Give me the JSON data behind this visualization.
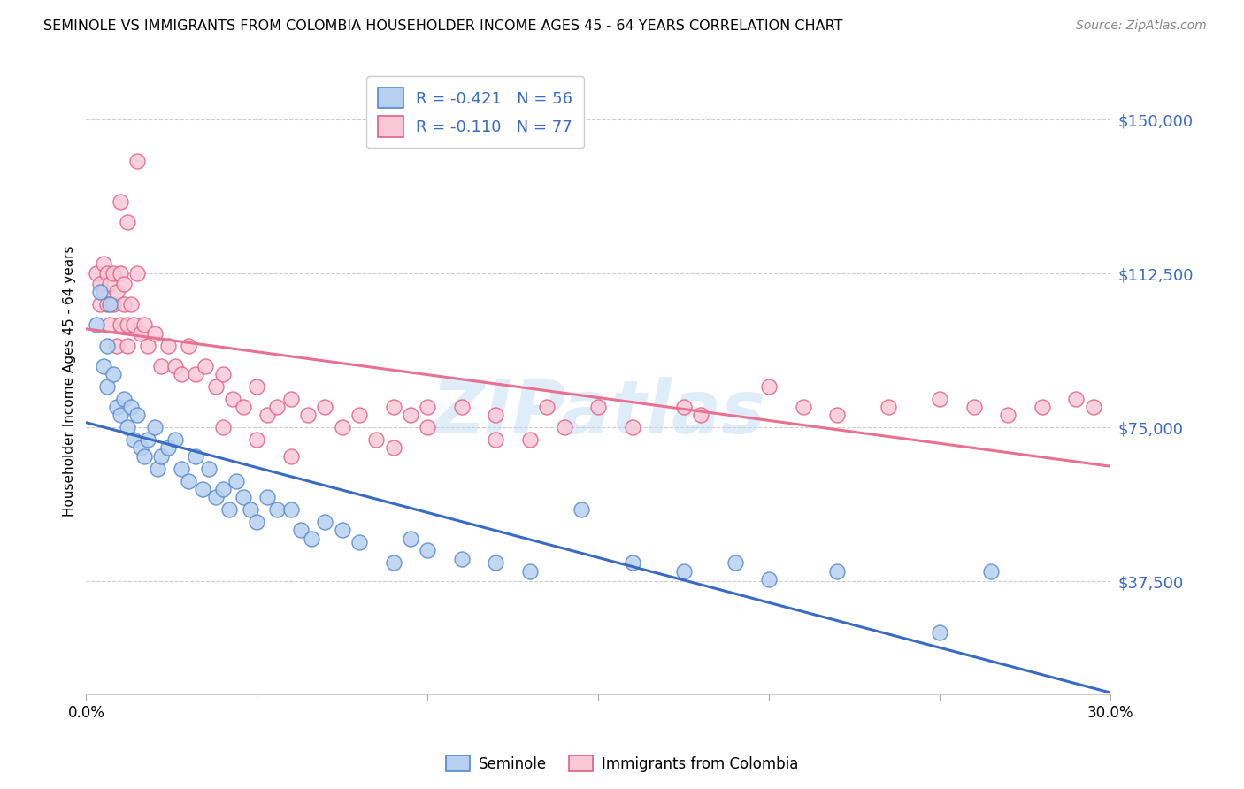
{
  "title": "SEMINOLE VS IMMIGRANTS FROM COLOMBIA HOUSEHOLDER INCOME AGES 45 - 64 YEARS CORRELATION CHART",
  "source": "Source: ZipAtlas.com",
  "ylabel": "Householder Income Ages 45 - 64 years",
  "ytick_labels": [
    "$37,500",
    "$75,000",
    "$112,500",
    "$150,000"
  ],
  "ytick_values": [
    37500,
    75000,
    112500,
    150000
  ],
  "ymin": 10000,
  "ymax": 162500,
  "xmin": 0.0,
  "xmax": 0.3,
  "xticks": [
    0.0,
    0.05,
    0.1,
    0.15,
    0.2,
    0.25,
    0.3
  ],
  "xtick_labels": [
    "0.0%",
    "",
    "",
    "",
    "",
    "",
    "30.0%"
  ],
  "legend_label1": "R = -0.421   N = 56",
  "legend_label2": "R = -0.110   N = 77",
  "legend_color1": "#b8d0f0",
  "legend_color2": "#f8c8d8",
  "line_color1": "#3A6BC4",
  "line_color2": "#E87090",
  "scatter_color1": "#b8d0f0",
  "scatter_color2": "#f8c8d8",
  "scatter_edge1": "#5588CC",
  "scatter_edge2": "#E06080",
  "watermark": "ZIPatlas",
  "bottom_label1": "Seminole",
  "bottom_label2": "Immigrants from Colombia",
  "seminole_x": [
    0.003,
    0.004,
    0.005,
    0.006,
    0.006,
    0.007,
    0.008,
    0.009,
    0.01,
    0.011,
    0.012,
    0.013,
    0.014,
    0.015,
    0.016,
    0.017,
    0.018,
    0.02,
    0.021,
    0.022,
    0.024,
    0.026,
    0.028,
    0.03,
    0.032,
    0.034,
    0.036,
    0.038,
    0.04,
    0.042,
    0.044,
    0.046,
    0.048,
    0.05,
    0.053,
    0.056,
    0.06,
    0.063,
    0.066,
    0.07,
    0.075,
    0.08,
    0.09,
    0.095,
    0.1,
    0.11,
    0.12,
    0.13,
    0.145,
    0.16,
    0.175,
    0.19,
    0.2,
    0.22,
    0.25,
    0.265
  ],
  "seminole_y": [
    100000,
    108000,
    90000,
    95000,
    85000,
    105000,
    88000,
    80000,
    78000,
    82000,
    75000,
    80000,
    72000,
    78000,
    70000,
    68000,
    72000,
    75000,
    65000,
    68000,
    70000,
    72000,
    65000,
    62000,
    68000,
    60000,
    65000,
    58000,
    60000,
    55000,
    62000,
    58000,
    55000,
    52000,
    58000,
    55000,
    55000,
    50000,
    48000,
    52000,
    50000,
    47000,
    42000,
    48000,
    45000,
    43000,
    42000,
    40000,
    55000,
    42000,
    40000,
    42000,
    38000,
    40000,
    25000,
    40000
  ],
  "colombia_x": [
    0.003,
    0.004,
    0.004,
    0.005,
    0.005,
    0.006,
    0.006,
    0.007,
    0.007,
    0.008,
    0.008,
    0.009,
    0.009,
    0.01,
    0.01,
    0.011,
    0.011,
    0.012,
    0.012,
    0.013,
    0.014,
    0.015,
    0.016,
    0.017,
    0.018,
    0.02,
    0.022,
    0.024,
    0.026,
    0.028,
    0.03,
    0.032,
    0.035,
    0.038,
    0.04,
    0.043,
    0.046,
    0.05,
    0.053,
    0.056,
    0.06,
    0.065,
    0.07,
    0.075,
    0.08,
    0.085,
    0.09,
    0.095,
    0.1,
    0.11,
    0.12,
    0.13,
    0.135,
    0.14,
    0.15,
    0.16,
    0.175,
    0.18,
    0.2,
    0.21,
    0.22,
    0.235,
    0.25,
    0.26,
    0.27,
    0.28,
    0.29,
    0.295,
    0.04,
    0.05,
    0.06,
    0.09,
    0.1,
    0.12,
    0.01,
    0.012,
    0.015
  ],
  "colombia_y": [
    112500,
    110000,
    105000,
    115000,
    108000,
    112500,
    105000,
    110000,
    100000,
    112500,
    105000,
    108000,
    95000,
    112500,
    100000,
    105000,
    110000,
    100000,
    95000,
    105000,
    100000,
    112500,
    98000,
    100000,
    95000,
    98000,
    90000,
    95000,
    90000,
    88000,
    95000,
    88000,
    90000,
    85000,
    88000,
    82000,
    80000,
    85000,
    78000,
    80000,
    82000,
    78000,
    80000,
    75000,
    78000,
    72000,
    80000,
    78000,
    75000,
    80000,
    78000,
    72000,
    80000,
    75000,
    80000,
    75000,
    80000,
    78000,
    85000,
    80000,
    78000,
    80000,
    82000,
    80000,
    78000,
    80000,
    82000,
    80000,
    75000,
    72000,
    68000,
    70000,
    80000,
    72000,
    130000,
    125000,
    140000
  ]
}
